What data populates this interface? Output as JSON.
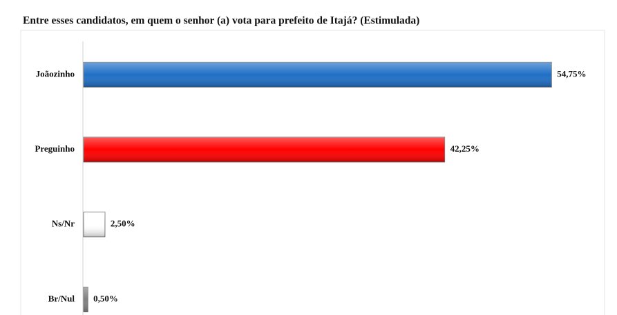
{
  "chart_data": {
    "type": "bar",
    "orientation": "horizontal",
    "title": "Entre esses candidatos, em quem o senhor (a) vota para prefeito de Itajá? (Estimulada)",
    "categories": [
      "Joãozinho",
      "Preguinho",
      "Ns/Nr",
      "Br/Nul"
    ],
    "values": [
      54.75,
      42.25,
      2.5,
      0.5
    ],
    "value_labels": [
      "54,75%",
      "42,25%",
      "2,50%",
      "0,50%"
    ],
    "colors": [
      "#1f6fc6",
      "#ff0000",
      "#ffffff",
      "#808080"
    ]
  }
}
